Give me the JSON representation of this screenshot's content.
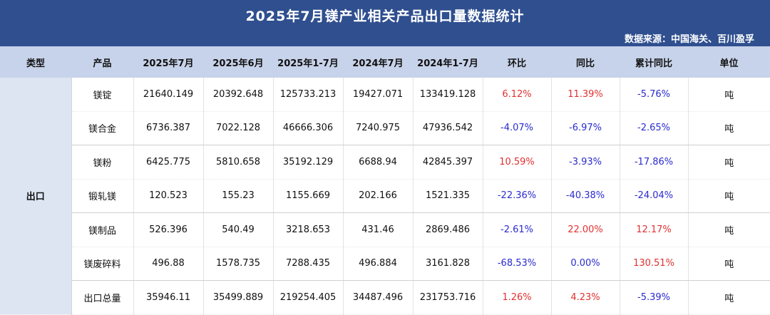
{
  "title": "2025年7月镁产业相关产品出口量数据统计",
  "source": "数据来源：中国海关、百川盈孚",
  "headers": [
    "类型",
    "产品",
    "2025年7月",
    "2025年6月",
    "2025年1-7月",
    "2024年7月",
    "2024年1-7月",
    "环比",
    "同比",
    "累计同比",
    "单位"
  ],
  "type_label": "出口",
  "rows": [
    {
      "product": "镁锭",
      "jul2025": "21640.149",
      "jun2025": "20392.648",
      "ytd2025": "125733.213",
      "jul2024": "19427.071",
      "ytd2024": "133419.128",
      "mom": "6.12%",
      "yoy": "11.39%",
      "cum_yoy": "-5.76%",
      "unit": "吨"
    },
    {
      "product": "镁合金",
      "jul2025": "6736.387",
      "jun2025": "7022.128",
      "ytd2025": "46666.306",
      "jul2024": "7240.975",
      "ytd2024": "47936.542",
      "mom": "-4.07%",
      "yoy": "-6.97%",
      "cum_yoy": "-2.65%",
      "unit": "吨"
    },
    {
      "product": "镁粉",
      "jul2025": "6425.775",
      "jun2025": "5810.658",
      "ytd2025": "35192.129",
      "jul2024": "6688.94",
      "ytd2024": "42845.397",
      "mom": "10.59%",
      "yoy": "-3.93%",
      "cum_yoy": "-17.86%",
      "unit": "吨"
    },
    {
      "product": "锻轧镁",
      "jul2025": "120.523",
      "jun2025": "155.23",
      "ytd2025": "1155.669",
      "jul2024": "202.166",
      "ytd2024": "1521.335",
      "mom": "-22.36%",
      "yoy": "-40.38%",
      "cum_yoy": "-24.04%",
      "unit": "吨"
    },
    {
      "product": "镁制品",
      "jul2025": "526.396",
      "jun2025": "540.49",
      "ytd2025": "3218.653",
      "jul2024": "431.46",
      "ytd2024": "2869.486",
      "mom": "-2.61%",
      "yoy": "22.00%",
      "cum_yoy": "12.17%",
      "unit": "吨"
    },
    {
      "product": "镁废碎料",
      "jul2025": "496.88",
      "jun2025": "1578.735",
      "ytd2025": "7288.435",
      "jul2024": "496.884",
      "ytd2024": "3161.828",
      "mom": "-68.53%",
      "yoy": "0.00%",
      "cum_yoy": "130.51%",
      "unit": "吨"
    },
    {
      "product": "出口总量",
      "jul2025": "35946.11",
      "jun2025": "35499.889",
      "ytd2025": "219254.405",
      "jul2024": "34487.496",
      "ytd2024": "231753.716",
      "mom": "1.26%",
      "yoy": "4.23%",
      "cum_yoy": "-5.39%",
      "unit": "吨"
    }
  ],
  "colors": {
    "banner": "#2f4f8f",
    "header_bg": "#c7d3ea",
    "type_bg": "#dde5f3",
    "positive": "#e23030",
    "negative": "#2a2ad0"
  }
}
